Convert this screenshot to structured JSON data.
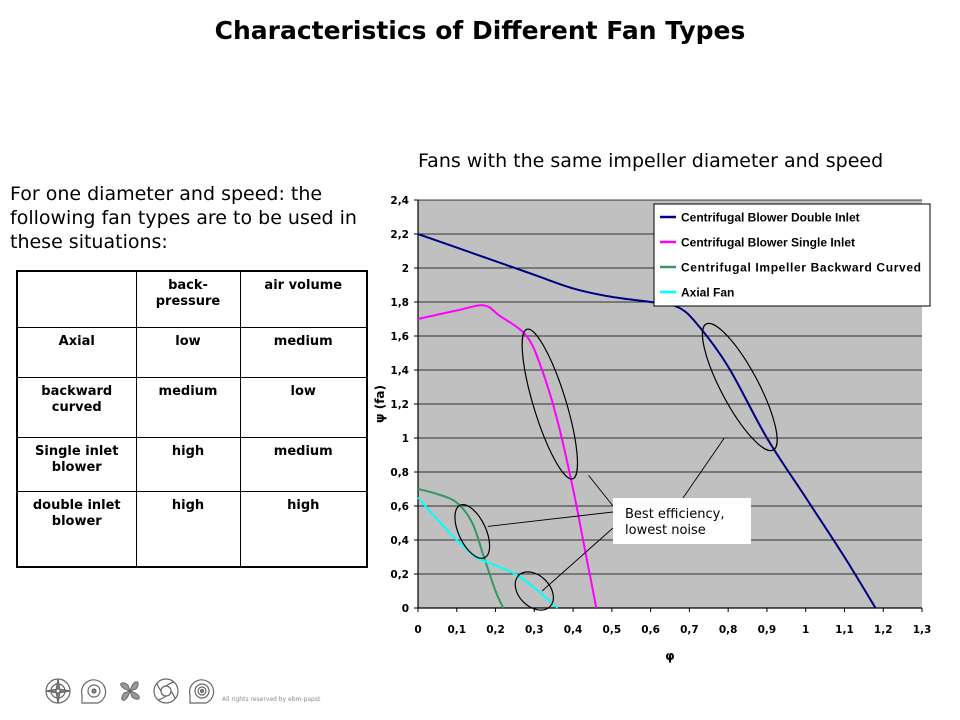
{
  "page": {
    "title": "Characteristics of Different Fan Types",
    "intro": "For one diameter and speed: the following fan types are to be used in these situations:",
    "footer": "All rights reserved by ebm-papst"
  },
  "table": {
    "headers": [
      "",
      "back-\npressure",
      "air volume"
    ],
    "rows": [
      [
        "Axial",
        "low",
        "medium"
      ],
      [
        "backward\ncurved",
        "medium",
        "low"
      ],
      [
        "Single inlet\nblower",
        "high",
        "medium"
      ],
      [
        "double inlet\nblower",
        "high",
        "high"
      ]
    ]
  },
  "chart_data": {
    "type": "line",
    "subtitle": "Fans with the same impeller diameter and speed",
    "xlabel": "φ",
    "ylabel": "ψ (fa)",
    "xlim": [
      0,
      1.3
    ],
    "ylim": [
      0,
      2.4
    ],
    "xticks": [
      "0",
      "0,1",
      "0,2",
      "0,3",
      "0,4",
      "0,5",
      "0,6",
      "0,7",
      "0,8",
      "0,9",
      "1",
      "1,1",
      "1,2",
      "1,3"
    ],
    "yticks": [
      "0",
      "0,2",
      "0,4",
      "0,6",
      "0,8",
      "1",
      "1,2",
      "1,4",
      "1,6",
      "1,8",
      "2",
      "2,2",
      "2,4"
    ],
    "grid": "horizontal",
    "background": "#c0c0c0",
    "legend_position": "top-right",
    "series": [
      {
        "name": "Centrifugal Blower Double Inlet",
        "color": "#000080",
        "x": [
          0,
          0.1,
          0.2,
          0.3,
          0.4,
          0.5,
          0.6,
          0.67,
          0.72,
          0.8,
          0.9,
          1.0,
          1.1,
          1.18
        ],
        "y": [
          2.2,
          2.12,
          2.04,
          1.96,
          1.88,
          1.83,
          1.8,
          1.77,
          1.67,
          1.42,
          1.0,
          0.65,
          0.3,
          0
        ]
      },
      {
        "name": "Centrifugal Blower Single Inlet",
        "color": "#ff00ff",
        "x": [
          0,
          0.1,
          0.17,
          0.21,
          0.28,
          0.32,
          0.36,
          0.4,
          0.43,
          0.46
        ],
        "y": [
          1.7,
          1.75,
          1.78,
          1.72,
          1.6,
          1.4,
          1.1,
          0.7,
          0.35,
          0
        ]
      },
      {
        "name": "Centrifugal Impeller Backward Curved",
        "color": "#339966",
        "x": [
          0,
          0.05,
          0.1,
          0.14,
          0.17,
          0.2,
          0.22
        ],
        "y": [
          0.7,
          0.67,
          0.62,
          0.5,
          0.3,
          0.1,
          0
        ]
      },
      {
        "name": "Axial Fan",
        "color": "#00ffff",
        "x": [
          0,
          0.05,
          0.1,
          0.15,
          0.2,
          0.25,
          0.3,
          0.36
        ],
        "y": [
          0.65,
          0.52,
          0.4,
          0.3,
          0.25,
          0.2,
          0.12,
          0
        ]
      }
    ],
    "annotation": "Best efficiency,\nlowest noise",
    "efficiency_regions": [
      {
        "cx": 0.83,
        "cy": 1.3,
        "rx": 0.048,
        "ry": 0.42,
        "angle": -28
      },
      {
        "cx": 0.34,
        "cy": 1.2,
        "rx": 0.042,
        "ry": 0.46,
        "angle": -17
      },
      {
        "cx": 0.14,
        "cy": 0.45,
        "rx": 0.035,
        "ry": 0.17,
        "angle": -25
      },
      {
        "cx": 0.3,
        "cy": 0.1,
        "rx": 0.04,
        "ry": 0.13,
        "angle": -45
      }
    ]
  },
  "icons": [
    "compass-fan-icon",
    "blower-icon",
    "axial-propeller-icon",
    "backward-impeller-icon",
    "double-inlet-blower-icon"
  ]
}
